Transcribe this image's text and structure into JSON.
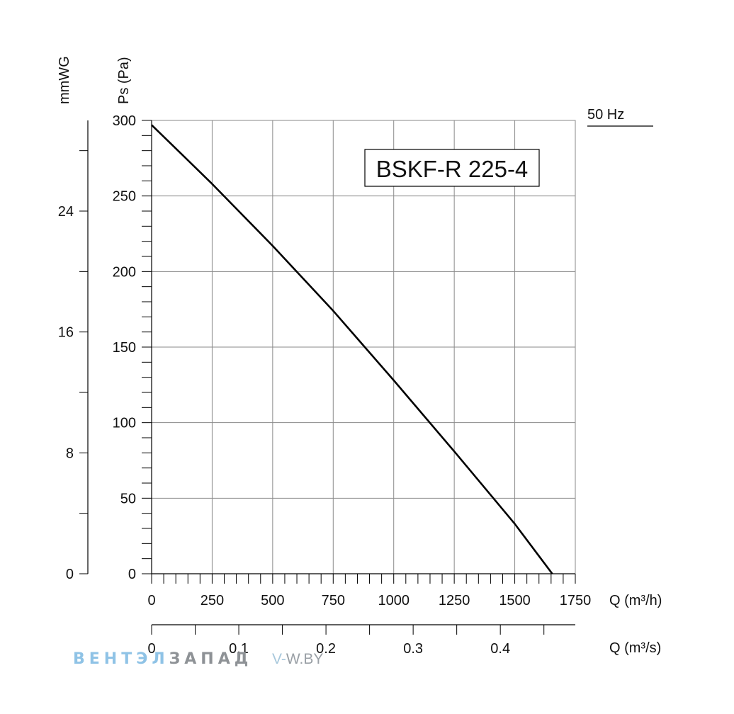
{
  "chart_data": {
    "type": "line",
    "title": "BSKF-R 225-4",
    "frequency_label": "50 Hz",
    "x_axis": {
      "label": "Q (m³/h)",
      "min": 0,
      "max": 1750,
      "ticks": [
        0,
        250,
        500,
        750,
        1000,
        1250,
        1500,
        1750
      ],
      "tick_labels": [
        "0",
        "250",
        "500",
        "750",
        "1000",
        "1250",
        "1500",
        "1750"
      ]
    },
    "x2_axis": {
      "label": "Q (m³/s)",
      "min": 0,
      "max": 0.486,
      "ticks": [
        0,
        0.1,
        0.2,
        0.3,
        0.4
      ],
      "tick_labels": [
        "0",
        "0.1",
        "0.2",
        "0.3",
        "0.4"
      ]
    },
    "y_axis": {
      "label": "Ps (Pa)",
      "min": 0,
      "max": 300,
      "ticks": [
        0,
        50,
        100,
        150,
        200,
        250,
        300
      ],
      "tick_labels": [
        "0",
        "50",
        "100",
        "150",
        "200",
        "250",
        "300"
      ]
    },
    "y2_axis": {
      "label": "mmWG",
      "min": 0,
      "max": 30,
      "ticks": [
        0,
        8,
        16,
        24
      ],
      "tick_labels": [
        "0",
        "8",
        "16",
        "24"
      ]
    },
    "grid": true,
    "series": [
      {
        "x": [
          0,
          250,
          500,
          750,
          1000,
          1250,
          1500,
          1655
        ],
        "y": [
          297,
          258,
          217,
          174,
          128,
          81,
          33,
          0
        ]
      }
    ]
  },
  "watermark": {
    "brand_part1": "ВЕНТЭЛ",
    "brand_part2": "ЗАПАД",
    "site_part1": "V-",
    "site_part2": "W.BY"
  },
  "colors": {
    "grid": "#8a8a8a",
    "curve": "#000000",
    "watermark_blue": "#8fc3e6",
    "watermark_grey": "#8e9296"
  }
}
